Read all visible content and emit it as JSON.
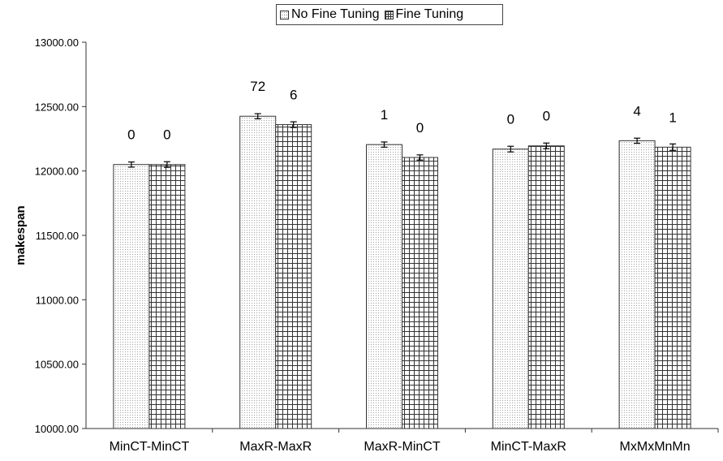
{
  "chart_data": {
    "type": "bar",
    "title": "",
    "xlabel": "",
    "ylabel": "makespan",
    "ylim": [
      10000,
      13000
    ],
    "yticks": [
      "10000.00",
      "10500.00",
      "11000.00",
      "11500.00",
      "12000.00",
      "12500.00",
      "13000.00"
    ],
    "legend_position": "top-center",
    "categories": [
      "MinCT-MinCT",
      "MaxR-MaxR",
      "MaxR-MinCT",
      "MinCT-MaxR",
      "MxMxMnMn"
    ],
    "series": [
      {
        "name": "No Fine Tuning",
        "pattern": "dots",
        "values": [
          12050,
          12425,
          12205,
          12170,
          12235
        ],
        "error": [
          20,
          20,
          20,
          22,
          20
        ],
        "labels": [
          "0",
          "72",
          "1",
          "0",
          "4"
        ]
      },
      {
        "name": "Fine Tuning",
        "pattern": "grid",
        "values": [
          12050,
          12360,
          12105,
          12195,
          12185
        ],
        "error": [
          22,
          22,
          20,
          22,
          25
        ],
        "labels": [
          "0",
          "6",
          "0",
          "0",
          "1"
        ]
      }
    ],
    "grid": false,
    "colors": {
      "bar_outline": "#333333",
      "dot_pattern": "#8a8a8a",
      "grid_pattern": "#333333"
    }
  }
}
